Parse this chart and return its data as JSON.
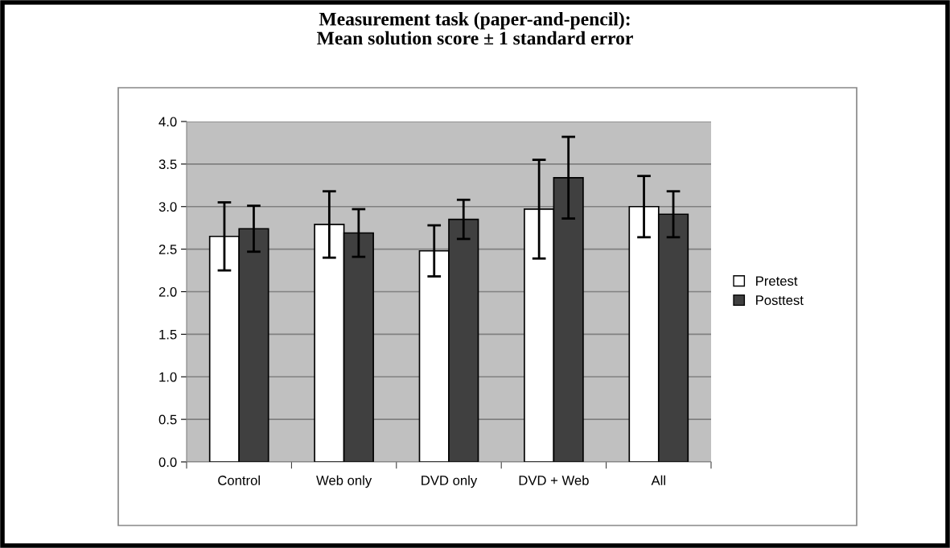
{
  "chart_data": {
    "type": "bar",
    "title": "Measurement task (paper-and-pencil):\nMean solution score ± 1 standard error",
    "categories": [
      "Control",
      "Web only",
      "DVD only",
      "DVD + Web",
      "All"
    ],
    "series": [
      {
        "name": "Pretest",
        "color": "#ffffff",
        "values": [
          2.65,
          2.79,
          2.48,
          2.97,
          3.0
        ],
        "errors": [
          0.4,
          0.39,
          0.3,
          0.58,
          0.36
        ]
      },
      {
        "name": "Posttest",
        "color": "#404040",
        "values": [
          2.74,
          2.69,
          2.85,
          3.34,
          2.91
        ],
        "errors": [
          0.27,
          0.28,
          0.23,
          0.48,
          0.27
        ]
      }
    ],
    "ylim": [
      0,
      4
    ],
    "yticks": [
      {
        "value": 0,
        "label": "0.0"
      },
      {
        "value": 0.5,
        "label": "0.5"
      },
      {
        "value": 1,
        "label": "1.0"
      },
      {
        "value": 1.5,
        "label": "1.5"
      },
      {
        "value": 2,
        "label": "2.0"
      },
      {
        "value": 2.5,
        "label": "2.5"
      },
      {
        "value": 3,
        "label": "3.0"
      },
      {
        "value": 3.5,
        "label": "3.5"
      },
      {
        "value": 4,
        "label": "4.0"
      }
    ],
    "grid": "y",
    "legend": "right"
  }
}
